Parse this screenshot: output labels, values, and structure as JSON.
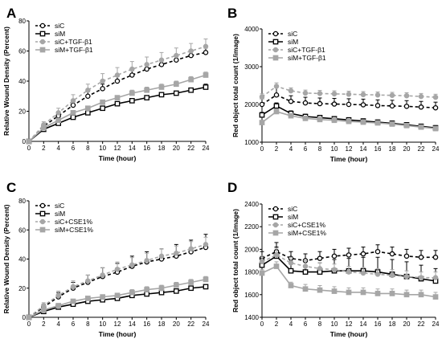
{
  "colors": {
    "siC": "#000000",
    "siM": "#000000",
    "siC_treated": "#a6a6a6",
    "siM_treated": "#a6a6a6"
  },
  "chart_data": [
    {
      "panel": "A",
      "type": "line",
      "xlabel": "Time (hour)",
      "ylabel": "Relative Wound Density (Percent)",
      "xlim": [
        0,
        24
      ],
      "ylim": [
        0,
        80
      ],
      "xticks": [
        "0",
        "2",
        "4",
        "6",
        "8",
        "10",
        "12",
        "14",
        "16",
        "18",
        "20",
        "22",
        "24"
      ],
      "yticks": [
        "0",
        "20",
        "40",
        "60",
        "80"
      ],
      "legend_position": "top-left",
      "x": [
        0,
        2,
        4,
        6,
        8,
        10,
        12,
        14,
        16,
        18,
        20,
        22,
        24
      ],
      "series": [
        {
          "name": "siC",
          "style": "dashed-open-circle",
          "values": [
            0,
            10,
            17,
            24,
            30,
            35,
            40,
            44,
            48,
            51,
            54,
            57,
            59
          ],
          "errors": [
            0,
            1,
            2,
            2,
            3,
            3,
            3,
            3,
            3,
            3,
            3,
            3,
            3
          ]
        },
        {
          "name": "siM",
          "style": "solid-open-square",
          "values": [
            0,
            8,
            12,
            16,
            19,
            22,
            25,
            27,
            29,
            31,
            32,
            34,
            36
          ],
          "errors": [
            0,
            1,
            1,
            1,
            1,
            1,
            1,
            1,
            1,
            1,
            1,
            1,
            2
          ]
        },
        {
          "name": "siC+TGF-β1",
          "style": "dashed-gray-circle",
          "values": [
            0,
            11,
            19,
            27,
            34,
            40,
            44,
            48,
            51,
            54,
            57,
            60,
            63
          ],
          "errors": [
            0,
            2,
            3,
            4,
            4,
            5,
            5,
            5,
            5,
            5,
            5,
            5,
            5
          ]
        },
        {
          "name": "siM+TGF-β1",
          "style": "solid-gray-square",
          "values": [
            0,
            9,
            14,
            19,
            22,
            26,
            29,
            32,
            34,
            36,
            38,
            41,
            44
          ],
          "errors": [
            0,
            1,
            1,
            1,
            1,
            1,
            1,
            2,
            2,
            2,
            2,
            2,
            2
          ]
        }
      ]
    },
    {
      "panel": "B",
      "type": "line",
      "xlabel": "Time (hour)",
      "ylabel": "Red object total count (1/image)",
      "xlim": [
        0,
        24
      ],
      "ylim": [
        1000,
        4000
      ],
      "xticks": [
        "0",
        "2",
        "4",
        "6",
        "8",
        "10",
        "12",
        "14",
        "16",
        "18",
        "20",
        "22",
        "24"
      ],
      "yticks": [
        "1000",
        "2000",
        "3000",
        "4000"
      ],
      "legend_position": "top-left",
      "x": [
        0,
        2,
        4,
        6,
        8,
        10,
        12,
        14,
        16,
        18,
        20,
        22,
        24
      ],
      "series": [
        {
          "name": "siC",
          "style": "dashed-open-circle",
          "values": [
            2000,
            2250,
            2080,
            2040,
            2020,
            2010,
            2000,
            1990,
            1970,
            1960,
            1950,
            1930,
            1910
          ],
          "errors": [
            150,
            200,
            150,
            150,
            150,
            150,
            150,
            150,
            150,
            150,
            150,
            150,
            150
          ]
        },
        {
          "name": "siM",
          "style": "solid-open-square",
          "values": [
            1720,
            1960,
            1760,
            1680,
            1650,
            1620,
            1590,
            1560,
            1530,
            1500,
            1460,
            1420,
            1380
          ],
          "errors": [
            70,
            80,
            70,
            60,
            60,
            60,
            60,
            60,
            60,
            60,
            60,
            60,
            60
          ]
        },
        {
          "name": "siC+TGF-β1",
          "style": "dashed-gray-circle",
          "values": [
            2200,
            2480,
            2360,
            2300,
            2290,
            2280,
            2270,
            2260,
            2250,
            2240,
            2230,
            2210,
            2190
          ],
          "errors": [
            80,
            90,
            80,
            80,
            80,
            80,
            80,
            80,
            80,
            80,
            80,
            80,
            80
          ]
        },
        {
          "name": "siM+TGF-β1",
          "style": "solid-gray-square",
          "values": [
            1520,
            1810,
            1700,
            1630,
            1600,
            1580,
            1550,
            1530,
            1510,
            1480,
            1440,
            1400,
            1360
          ],
          "errors": [
            50,
            60,
            50,
            50,
            50,
            50,
            50,
            50,
            50,
            50,
            50,
            50,
            50
          ]
        }
      ]
    },
    {
      "panel": "C",
      "type": "line",
      "xlabel": "Time (hour)",
      "ylabel": "Relative Wound Density (Percent)",
      "xlim": [
        0,
        24
      ],
      "ylim": [
        0,
        80
      ],
      "xticks": [
        "0",
        "2",
        "4",
        "6",
        "8",
        "10",
        "12",
        "14",
        "16",
        "18",
        "20",
        "22",
        "24"
      ],
      "yticks": [
        "0",
        "20",
        "40",
        "60",
        "80"
      ],
      "legend_position": "top-left",
      "x": [
        0,
        2,
        4,
        6,
        8,
        10,
        12,
        14,
        16,
        18,
        20,
        22,
        24
      ],
      "series": [
        {
          "name": "siC",
          "style": "dashed-open-circle",
          "values": [
            0,
            7,
            14,
            20,
            24,
            28,
            31,
            35,
            38,
            40,
            42,
            45,
            48
          ],
          "errors": [
            0,
            2,
            3,
            4,
            5,
            6,
            6,
            7,
            7,
            7,
            8,
            8,
            9
          ]
        },
        {
          "name": "siM",
          "style": "solid-open-square",
          "values": [
            0,
            4,
            7,
            9,
            11,
            12,
            13,
            15,
            16,
            17,
            18,
            20,
            21
          ],
          "errors": [
            0,
            1,
            1,
            1,
            1,
            1,
            1,
            1,
            1,
            1,
            1,
            1,
            1
          ]
        },
        {
          "name": "siC+CSE1%",
          "style": "dashed-gray-circle",
          "values": [
            0,
            8,
            15,
            21,
            25,
            29,
            33,
            36,
            39,
            42,
            44,
            47,
            50
          ],
          "errors": [
            0,
            2,
            3,
            4,
            4,
            5,
            5,
            5,
            5,
            5,
            5,
            5,
            5
          ]
        },
        {
          "name": "siM+CSE1%",
          "style": "solid-gray-square",
          "values": [
            0,
            5,
            8,
            11,
            13,
            14,
            15,
            17,
            19,
            20,
            22,
            24,
            26
          ],
          "errors": [
            0,
            1,
            1,
            1,
            1,
            1,
            1,
            2,
            2,
            2,
            2,
            2,
            2
          ]
        }
      ]
    },
    {
      "panel": "D",
      "type": "line",
      "xlabel": "Time (hour)",
      "ylabel": "Red object total count (1/image)",
      "xlim": [
        0,
        24
      ],
      "ylim": [
        1400,
        2400
      ],
      "xticks": [
        "0",
        "2",
        "4",
        "6",
        "8",
        "10",
        "12",
        "14",
        "16",
        "18",
        "20",
        "22",
        "24"
      ],
      "yticks": [
        "1400",
        "1600",
        "1800",
        "2000",
        "2200",
        "2400"
      ],
      "legend_position": "top-left",
      "x": [
        0,
        2,
        4,
        6,
        8,
        10,
        12,
        14,
        16,
        18,
        20,
        22,
        24
      ],
      "series": [
        {
          "name": "siC",
          "style": "dashed-open-circle",
          "values": [
            1920,
            1980,
            1920,
            1900,
            1920,
            1940,
            1950,
            1960,
            1980,
            1960,
            1940,
            1930,
            1930
          ],
          "errors": [
            60,
            80,
            60,
            60,
            60,
            60,
            60,
            60,
            60,
            60,
            60,
            60,
            60
          ]
        },
        {
          "name": "siM",
          "style": "solid-open-square",
          "values": [
            1860,
            1940,
            1810,
            1800,
            1800,
            1810,
            1810,
            1810,
            1800,
            1780,
            1760,
            1740,
            1720
          ],
          "errors": [
            60,
            80,
            60,
            60,
            80,
            100,
            110,
            120,
            130,
            130,
            130,
            120,
            110
          ]
        },
        {
          "name": "siC+CSE1%",
          "style": "dashed-gray-circle",
          "values": [
            1890,
            1950,
            1880,
            1850,
            1830,
            1820,
            1800,
            1790,
            1780,
            1770,
            1760,
            1750,
            1750
          ],
          "errors": [
            50,
            60,
            50,
            50,
            50,
            50,
            50,
            50,
            50,
            50,
            50,
            50,
            50
          ]
        },
        {
          "name": "siM+CSE1%",
          "style": "solid-gray-square",
          "values": [
            1790,
            1850,
            1680,
            1650,
            1640,
            1630,
            1620,
            1620,
            1610,
            1610,
            1600,
            1600,
            1580
          ],
          "errors": [
            30,
            40,
            30,
            40,
            40,
            40,
            40,
            40,
            40,
            40,
            40,
            40,
            40
          ]
        }
      ]
    }
  ]
}
